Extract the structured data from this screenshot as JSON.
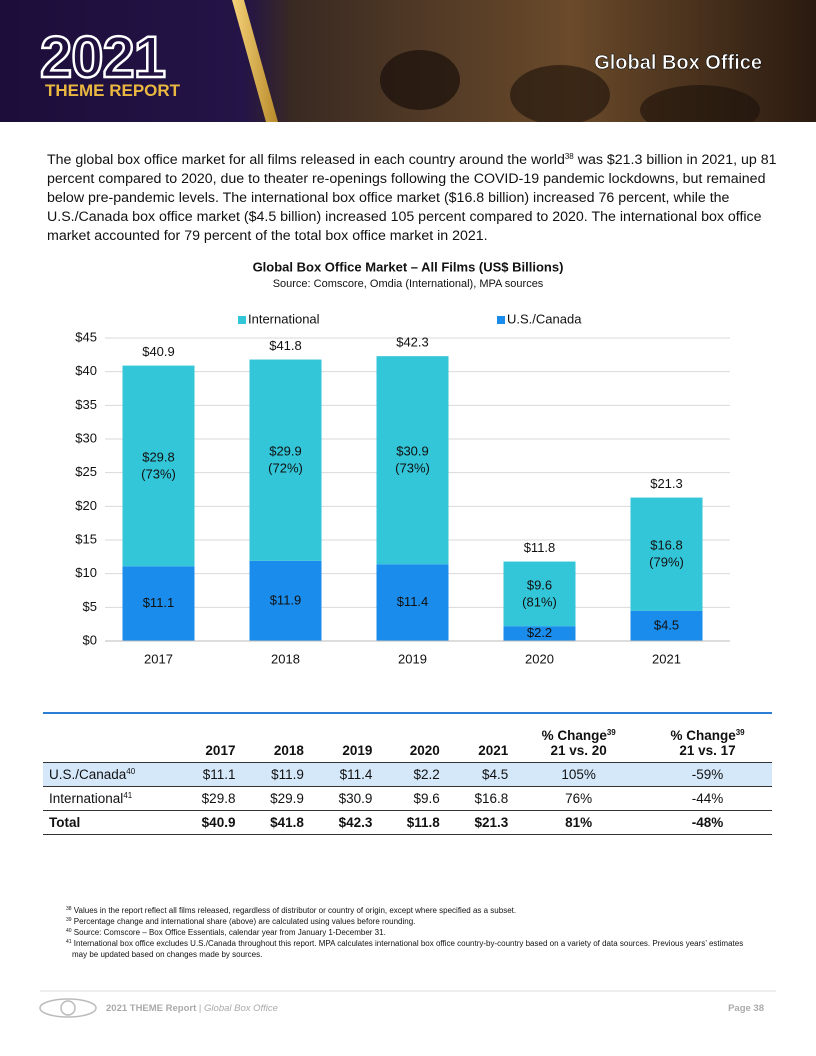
{
  "header": {
    "logo_year": "2021",
    "logo_subtitle": "THEME REPORT",
    "title": "Global Box Office"
  },
  "intro": {
    "text_before": "The global box office market for all films released in each country around the world",
    "footnote_ref": "38",
    "text_after": " was $21.3 billion in 2021, up 81 percent compared to 2020, due to theater re-openings following the COVID-19 pandemic lockdowns, but remained below pre-pandemic levels. The international box office market ($16.8 billion) increased 76 percent, while the U.S./Canada box office market ($4.5 billion) increased 105 percent compared to 2020. The international box office market accounted for 79 percent of the total box office market in 2021."
  },
  "chart_data": {
    "type": "bar",
    "stacked": true,
    "title": "Global Box Office Market – All Films (US$ Billions)",
    "subtitle": "Source: Comscore, Omdia (International), MPA sources",
    "categories": [
      "2017",
      "2018",
      "2019",
      "2020",
      "2021"
    ],
    "series": [
      {
        "name": "U.S./Canada",
        "color": "#1a8ceb",
        "values": [
          11.1,
          11.9,
          11.4,
          2.2,
          4.5
        ],
        "value_labels": [
          "$11.1",
          "$11.9",
          "$11.4",
          "$2.2",
          "$4.5"
        ]
      },
      {
        "name": "International",
        "color": "#33c5d8",
        "values": [
          29.8,
          29.9,
          30.9,
          9.6,
          16.8
        ],
        "value_labels": [
          "$29.8",
          "$29.9",
          "$30.9",
          "$9.6",
          "$16.8"
        ],
        "share_labels": [
          "(73%)",
          "(72%)",
          "(73%)",
          "(81%)",
          "(79%)"
        ]
      }
    ],
    "totals": {
      "values": [
        40.9,
        41.8,
        42.3,
        11.8,
        21.3
      ],
      "value_labels": [
        "$40.9",
        "$41.8",
        "$42.3",
        "$11.8",
        "$21.3"
      ]
    },
    "ylim": [
      0,
      45
    ],
    "yticks": [
      {
        "value": 0,
        "label": "$0"
      },
      {
        "value": 5,
        "label": "$5"
      },
      {
        "value": 10,
        "label": "$10"
      },
      {
        "value": 15,
        "label": "$15"
      },
      {
        "value": 20,
        "label": "$20"
      },
      {
        "value": 25,
        "label": "$25"
      },
      {
        "value": 30,
        "label": "$30"
      },
      {
        "value": 35,
        "label": "$35"
      },
      {
        "value": 40,
        "label": "$40"
      },
      {
        "value": 45,
        "label": "$45"
      }
    ],
    "grid": true,
    "legend": "top"
  },
  "table": {
    "columns": [
      "2017",
      "2018",
      "2019",
      "2020",
      "2021"
    ],
    "change_columns": [
      {
        "title": "% Change",
        "ref": "39",
        "period": "21 vs. 20"
      },
      {
        "title": "% Change",
        "ref": "39",
        "period": "21 vs. 17"
      }
    ],
    "rows": [
      {
        "label": "U.S./Canada",
        "ref": "40",
        "cells": [
          "$11.1",
          "$11.9",
          "$11.4",
          "$2.2",
          "$4.5",
          "105%",
          "-59%"
        ]
      },
      {
        "label": "International",
        "ref": "41",
        "cells": [
          "$29.8",
          "$29.9",
          "$30.9",
          "$9.6",
          "$16.8",
          "76%",
          "-44%"
        ]
      },
      {
        "label": "Total",
        "cells": [
          "$40.9",
          "$41.8",
          "$42.3",
          "$11.8",
          "$21.3",
          "81%",
          "-48%"
        ]
      }
    ]
  },
  "footnotes": [
    {
      "ref": "38",
      "text": "Values in the report reflect all films released, regardless of distributor or country of origin, except where specified as a subset."
    },
    {
      "ref": "39",
      "text": "Percentage change and international share (above) are calculated using values before rounding."
    },
    {
      "ref": "40",
      "text": "Source:  Comscore – Box Office Essentials, calendar year from January 1-December 31."
    },
    {
      "ref": "41",
      "text": "International box office excludes U.S./Canada throughout this report. MPA calculates international box office country-by-country based on a variety of data sources. Previous years’ estimates may be updated based on changes made by sources."
    }
  ],
  "footer": {
    "report": "2021 THEME Report",
    "separator": "|",
    "section": "Global Box Office",
    "page": "Page 38"
  }
}
